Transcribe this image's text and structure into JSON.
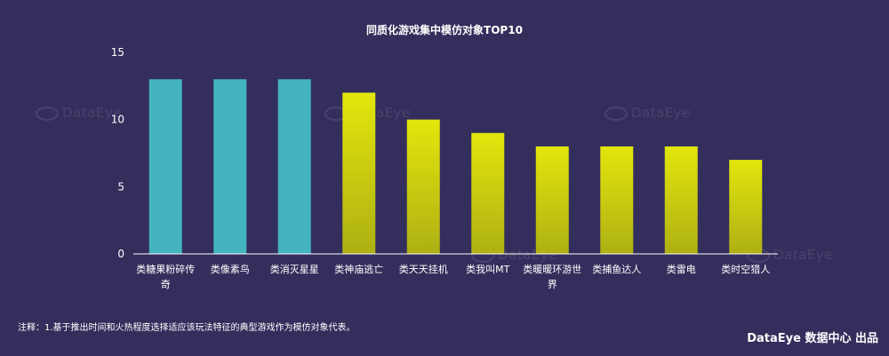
{
  "watermark": "DataEye",
  "footer": {
    "note": "注释：1.基于推出时间和火热程度选择适应该玩法特征的典型游戏作为模仿对象代表。",
    "brand": "DataEye 数据中心 出品"
  },
  "colors": {
    "background": "#342e5c",
    "teal": "#43b4c0",
    "yellow_top": "#e3e60c",
    "yellow_bottom": "#aeb014",
    "axis": "#ffffff"
  },
  "chart_data": {
    "type": "bar",
    "title": "同质化游戏集中模仿对象TOP10",
    "xlabel": "",
    "ylabel": "",
    "ylim": [
      0,
      15
    ],
    "yticks": [
      0,
      5,
      10,
      15
    ],
    "grid": false,
    "categories": [
      [
        "类糖果粉碎传",
        "奇"
      ],
      [
        "类像素鸟"
      ],
      [
        "类消灭星星"
      ],
      [
        "类神庙逃亡"
      ],
      [
        "类天天挂机"
      ],
      [
        "类我叫MT"
      ],
      [
        "类暖暖环游世",
        "界"
      ],
      [
        "类捕鱼达人"
      ],
      [
        "类雷电"
      ],
      [
        "类时空猎人"
      ]
    ],
    "values": [
      13,
      13,
      13,
      12,
      10,
      9,
      8,
      8,
      8,
      7
    ],
    "bar_colors": [
      "teal",
      "teal",
      "teal",
      "yellow",
      "yellow",
      "yellow",
      "yellow",
      "yellow",
      "yellow",
      "yellow"
    ]
  }
}
